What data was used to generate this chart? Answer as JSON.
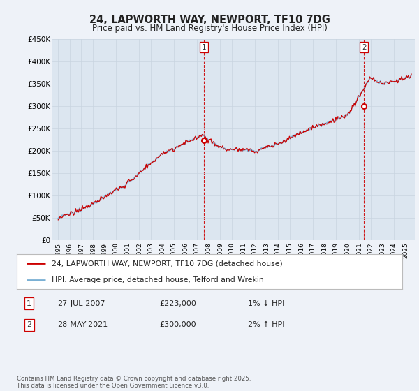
{
  "title": "24, LAPWORTH WAY, NEWPORT, TF10 7DG",
  "subtitle": "Price paid vs. HM Land Registry's House Price Index (HPI)",
  "ylabel_ticks": [
    "£0",
    "£50K",
    "£100K",
    "£150K",
    "£200K",
    "£250K",
    "£300K",
    "£350K",
    "£400K",
    "£450K"
  ],
  "ytick_values": [
    0,
    50000,
    100000,
    150000,
    200000,
    250000,
    300000,
    350000,
    400000,
    450000
  ],
  "ylim": [
    0,
    450000
  ],
  "xlim_start": 1994.5,
  "xlim_end": 2025.8,
  "hpi_color": "#7ab0d4",
  "price_color": "#cc0000",
  "marker1_date": 2007.57,
  "marker1_value": 223000,
  "marker1_label": "1",
  "marker2_date": 2021.41,
  "marker2_value": 300000,
  "marker2_label": "2",
  "legend_line1": "24, LAPWORTH WAY, NEWPORT, TF10 7DG (detached house)",
  "legend_line2": "HPI: Average price, detached house, Telford and Wrekin",
  "row1_label": "1",
  "row1_date": "27-JUL-2007",
  "row1_price": "£223,000",
  "row1_change": "1% ↓ HPI",
  "row2_label": "2",
  "row2_date": "28-MAY-2021",
  "row2_price": "£300,000",
  "row2_change": "2% ↑ HPI",
  "footer": "Contains HM Land Registry data © Crown copyright and database right 2025.\nThis data is licensed under the Open Government Licence v3.0.",
  "bg_color": "#eef2f8",
  "plot_bg_color": "#dce6f0",
  "legend_border_color": "#aaaaaa"
}
